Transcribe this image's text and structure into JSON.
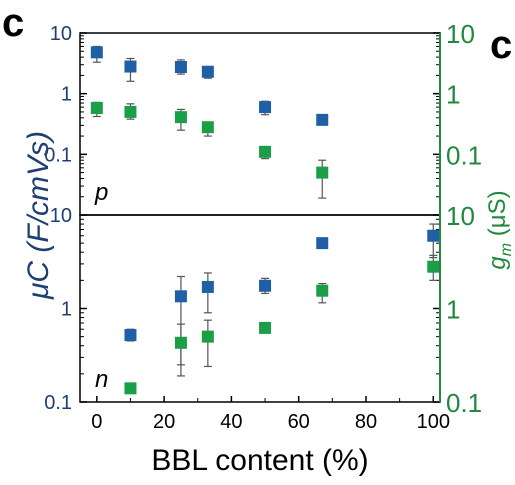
{
  "panel_letter": "c",
  "right_edge_glyph": "c",
  "colors": {
    "blue": "#1f5fa6",
    "green": "#1a9f48",
    "dark_blue": "#1f3f73",
    "dark_green": "#1f8a3d",
    "axis": "#000000",
    "error": "#555555"
  },
  "chart_data": [
    {
      "type": "scatter",
      "panel_label": "p",
      "x_scale": "linear",
      "y_scale": "log",
      "xlim": [
        -5,
        102
      ],
      "ylim_left": [
        0.01,
        10
      ],
      "ylim_right": [
        0.01,
        10
      ],
      "left_ticks": [
        {
          "v": 10,
          "label": "10"
        },
        {
          "v": 1,
          "label": "1"
        },
        {
          "v": 0.1,
          "label": "0.1"
        }
      ],
      "right_ticks": [
        {
          "v": 10,
          "label": "10"
        },
        {
          "v": 1,
          "label": "1"
        },
        {
          "v": 0.1,
          "label": "0.1"
        }
      ],
      "series": [
        {
          "axis": "left",
          "color": "#1f5fa6",
          "points": [
            {
              "x": 0,
              "y": 4.8,
              "lo": 3.3,
              "hi": 6.0
            },
            {
              "x": 10,
              "y": 2.8,
              "lo": 1.6,
              "hi": 3.8
            },
            {
              "x": 25,
              "y": 2.75,
              "lo": 2.1,
              "hi": 3.6
            },
            {
              "x": 33,
              "y": 2.3,
              "lo": 1.8,
              "hi": 2.7
            },
            {
              "x": 50,
              "y": 0.6,
              "lo": 0.45,
              "hi": 0.75
            },
            {
              "x": 67,
              "y": 0.37,
              "lo": 0.37,
              "hi": 0.37
            }
          ]
        },
        {
          "axis": "right",
          "color": "#1a9f48",
          "points": [
            {
              "x": 0,
              "y": 0.58,
              "lo": 0.42,
              "hi": 0.72
            },
            {
              "x": 10,
              "y": 0.5,
              "lo": 0.38,
              "hi": 0.68
            },
            {
              "x": 25,
              "y": 0.41,
              "lo": 0.25,
              "hi": 0.55
            },
            {
              "x": 33,
              "y": 0.28,
              "lo": 0.2,
              "hi": 0.34
            },
            {
              "x": 50,
              "y": 0.11,
              "lo": 0.085,
              "hi": 0.13
            },
            {
              "x": 67,
              "y": 0.05,
              "lo": 0.019,
              "hi": 0.08
            }
          ]
        }
      ]
    },
    {
      "type": "scatter",
      "panel_label": "n",
      "x_scale": "linear",
      "y_scale": "log",
      "xlim": [
        -5,
        102
      ],
      "ylim_left": [
        0.1,
        10
      ],
      "ylim_right": [
        0.1,
        10
      ],
      "left_ticks": [
        {
          "v": 10,
          "label": "10"
        },
        {
          "v": 1,
          "label": "1"
        },
        {
          "v": 0.1,
          "label": "0.1"
        }
      ],
      "right_ticks": [
        {
          "v": 10,
          "label": "10"
        },
        {
          "v": 1,
          "label": "1"
        },
        {
          "v": 0.1,
          "label": "0.1"
        }
      ],
      "series": [
        {
          "axis": "left",
          "color": "#1f5fa6",
          "points": [
            {
              "x": 10,
              "y": 0.52,
              "lo": 0.45,
              "hi": 0.6
            },
            {
              "x": 25,
              "y": 1.35,
              "lo": 0.19,
              "hi": 2.2
            },
            {
              "x": 33,
              "y": 1.7,
              "lo": 0.9,
              "hi": 2.4
            },
            {
              "x": 50,
              "y": 1.75,
              "lo": 1.45,
              "hi": 2.1
            },
            {
              "x": 67,
              "y": 5.0,
              "lo": 4.4,
              "hi": 5.5
            },
            {
              "x": 100,
              "y": 6.0,
              "lo": 3.5,
              "hi": 8.0
            }
          ]
        },
        {
          "axis": "right",
          "color": "#1a9f48",
          "points": [
            {
              "x": 10,
              "y": 0.14,
              "lo": 0.13,
              "hi": 0.15
            },
            {
              "x": 25,
              "y": 0.43,
              "lo": 0.25,
              "hi": 0.68
            },
            {
              "x": 33,
              "y": 0.5,
              "lo": 0.24,
              "hi": 0.75
            },
            {
              "x": 50,
              "y": 0.62,
              "lo": 0.58,
              "hi": 0.66
            },
            {
              "x": 67,
              "y": 1.55,
              "lo": 1.15,
              "hi": 1.85
            },
            {
              "x": 100,
              "y": 2.8,
              "lo": 2.0,
              "hi": 3.7
            }
          ]
        }
      ]
    }
  ],
  "x_axis": {
    "label": "BBL content (%)",
    "ticks": [
      {
        "v": 0,
        "label": "0"
      },
      {
        "v": 20,
        "label": "20"
      },
      {
        "v": 40,
        "label": "40"
      },
      {
        "v": 60,
        "label": "60"
      },
      {
        "v": 80,
        "label": "80"
      },
      {
        "v": 100,
        "label": "100"
      }
    ]
  },
  "y_left_label": "μC (F/cmVs)",
  "y_right_label_symbol": "g",
  "y_right_label_subscript": "m",
  "y_right_label_unit": " (μS)"
}
